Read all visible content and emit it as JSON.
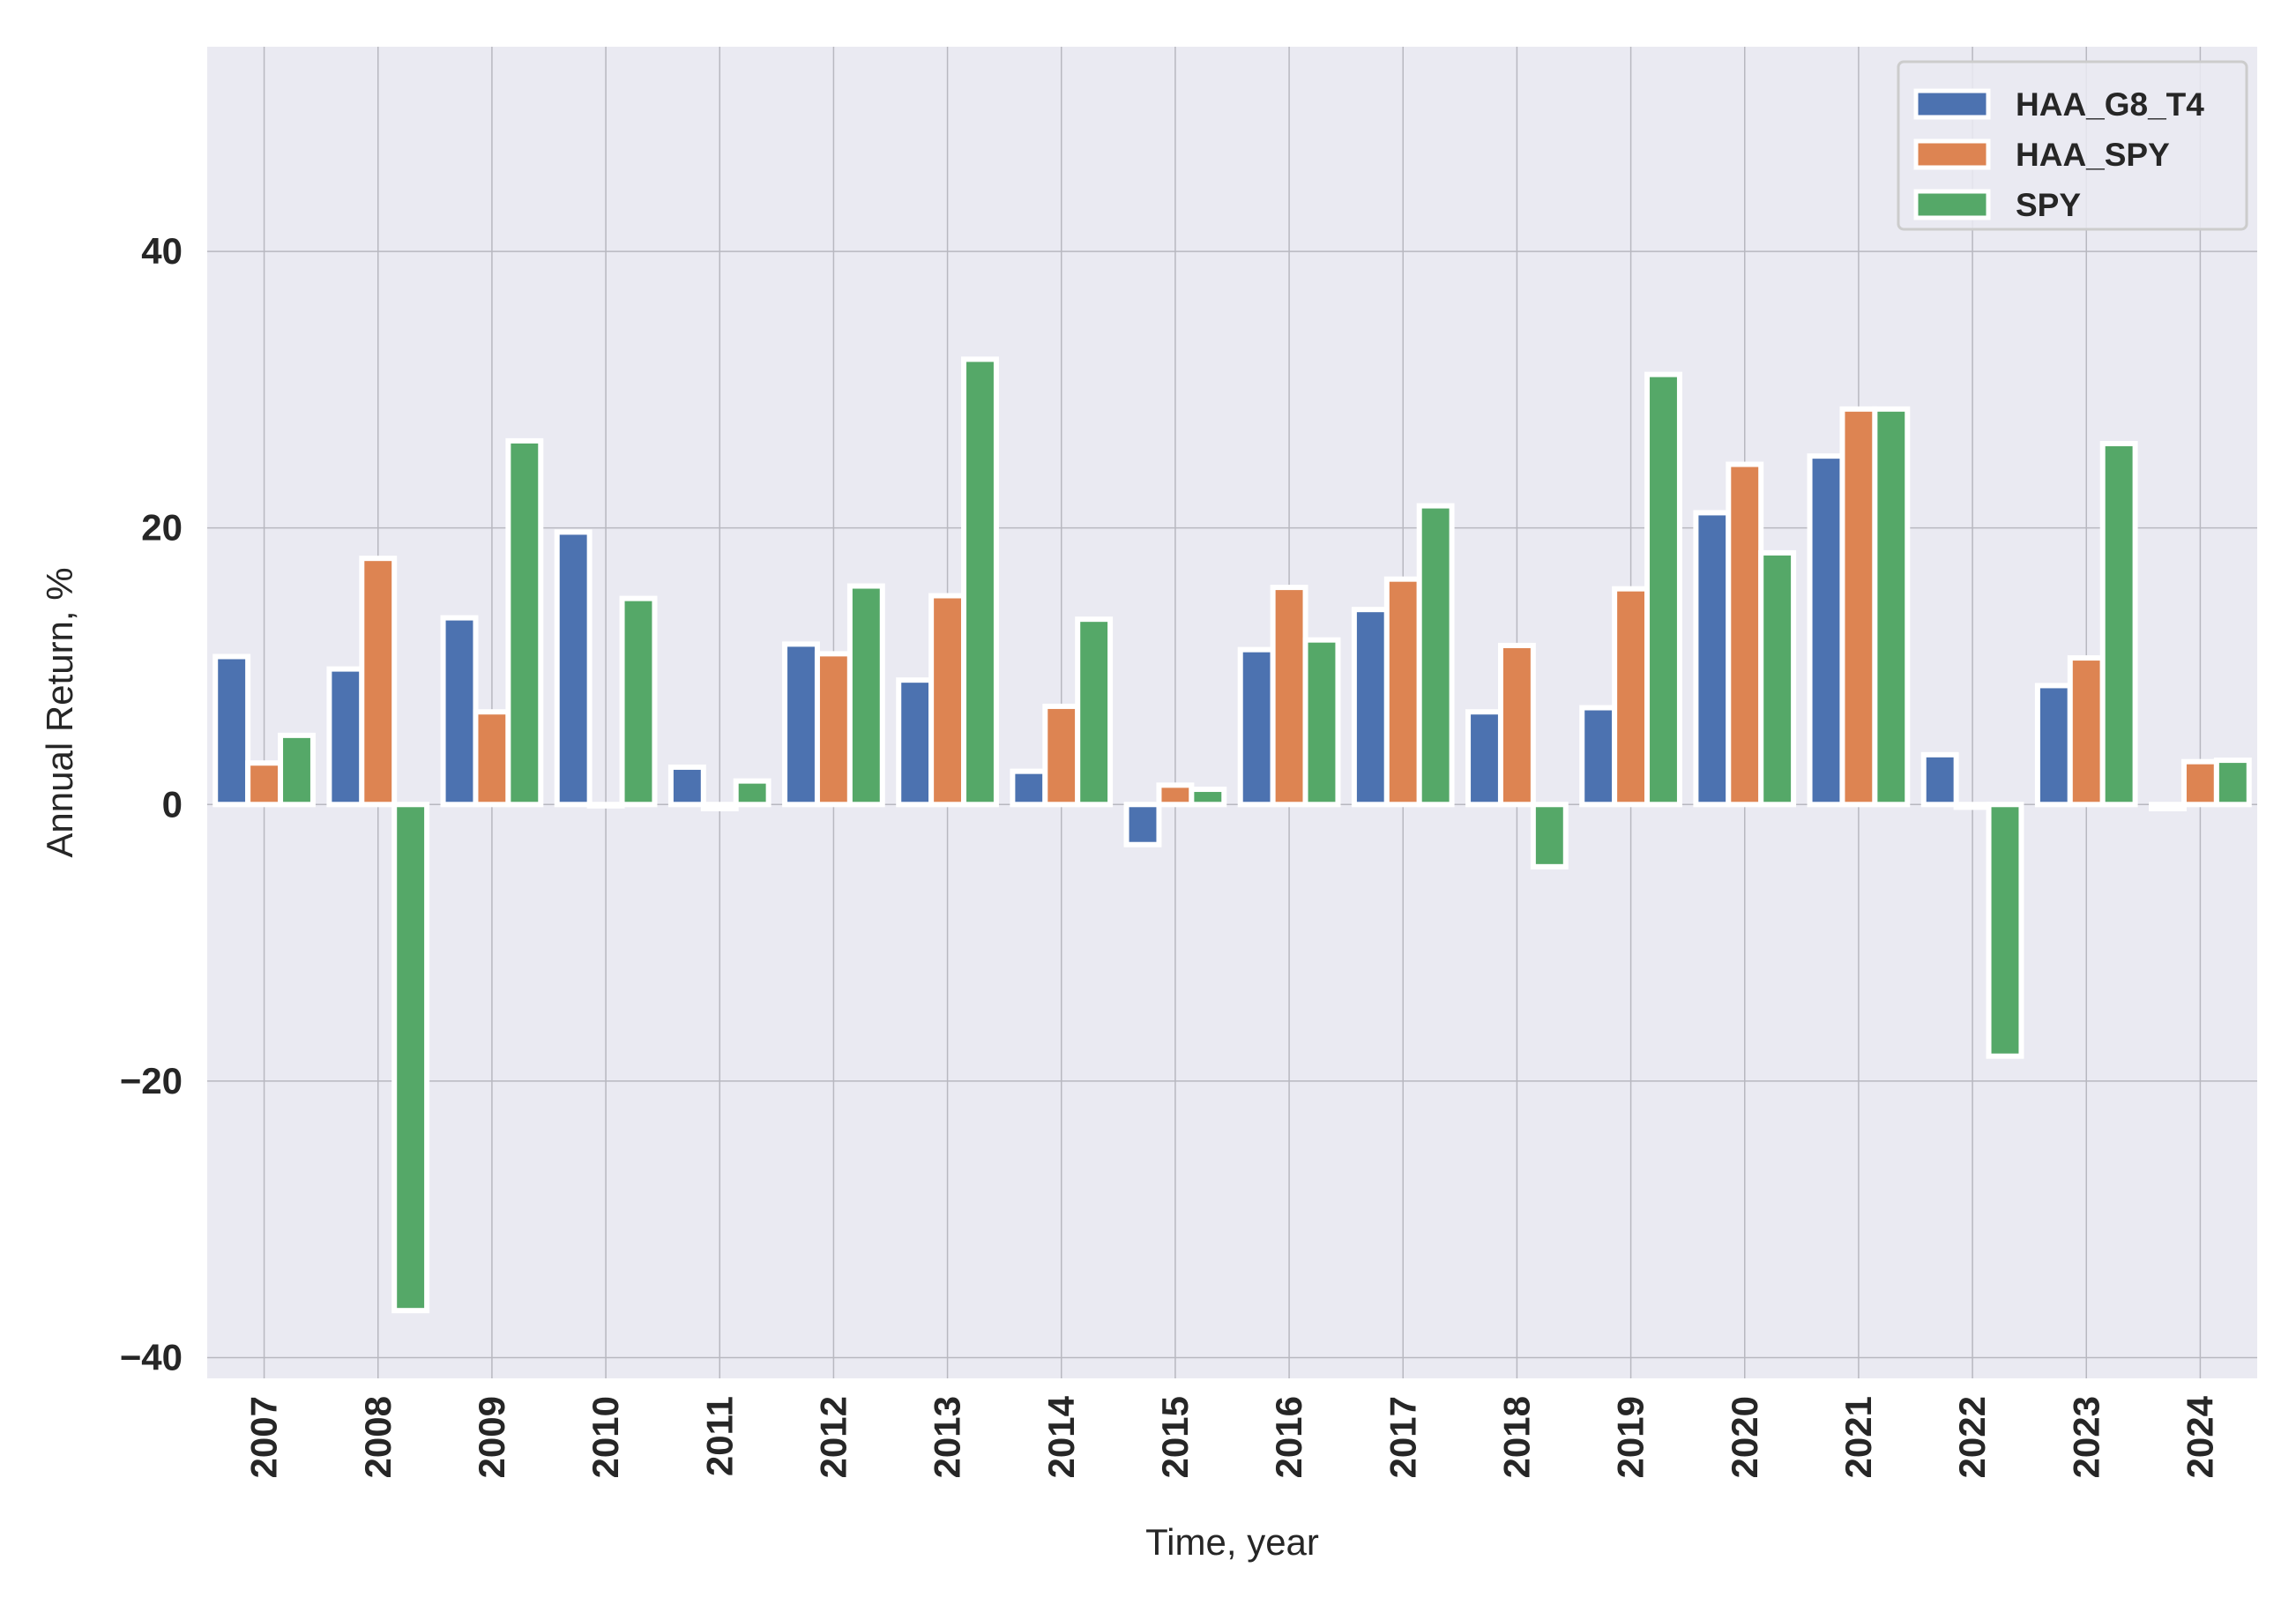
{
  "chart_data": {
    "type": "bar",
    "title": "",
    "xlabel": "Time, year",
    "ylabel": "Annual Return, %",
    "categories": [
      "2007",
      "2008",
      "2009",
      "2010",
      "2011",
      "2012",
      "2013",
      "2014",
      "2015",
      "2016",
      "2017",
      "2018",
      "2019",
      "2020",
      "2021",
      "2022",
      "2023",
      "2024"
    ],
    "series": [
      {
        "name": "HAA_G8_T4",
        "color": "#4c72b0",
        "values": [
          10.7,
          9.8,
          13.5,
          19.7,
          2.7,
          11.6,
          9.0,
          2.4,
          -2.9,
          11.2,
          14.1,
          6.7,
          7.0,
          21.1,
          25.2,
          3.6,
          8.6,
          -0.3
        ]
      },
      {
        "name": "HAA_SPY",
        "color": "#dd8452",
        "values": [
          3.0,
          17.8,
          6.7,
          -0.1,
          -0.3,
          10.9,
          15.1,
          7.1,
          1.4,
          15.7,
          16.3,
          11.5,
          15.6,
          24.6,
          28.6,
          -0.2,
          10.6,
          3.1
        ]
      },
      {
        "name": "SPY",
        "color": "#55a868",
        "values": [
          5.0,
          -36.6,
          26.3,
          14.9,
          1.7,
          15.8,
          32.2,
          13.4,
          1.1,
          11.9,
          21.6,
          -4.5,
          31.1,
          18.2,
          28.6,
          -18.2,
          26.1,
          3.2
        ]
      }
    ],
    "ylim": [
      -41.5,
      54.8
    ],
    "yticks": [
      -40,
      -20,
      0,
      20,
      40
    ],
    "ytick_labels": [
      "−40",
      "−20",
      "0",
      "20",
      "40"
    ],
    "grid": true,
    "legend_position": "top-right",
    "background": "#eaeaf2"
  }
}
